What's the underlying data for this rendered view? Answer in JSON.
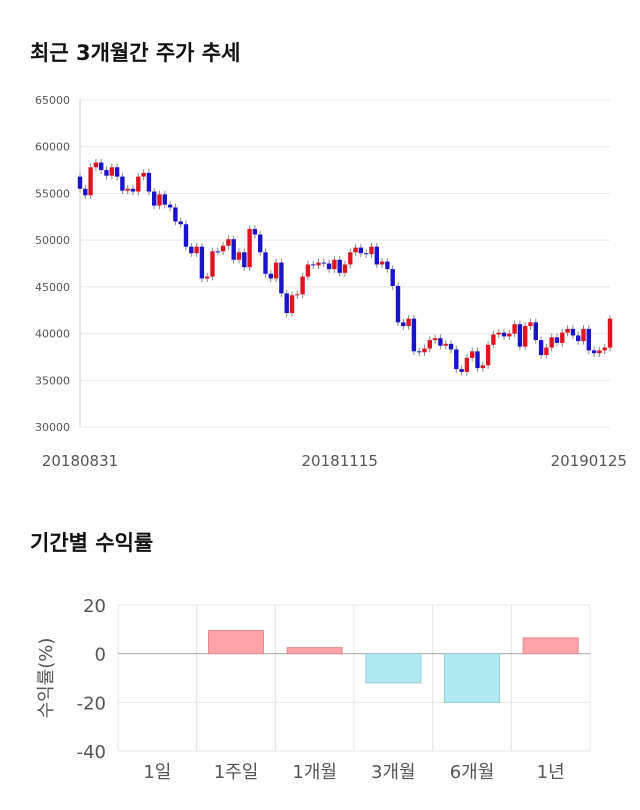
{
  "chart_data": [
    {
      "type": "candlestick",
      "title": "최근 3개월간 주가 추세",
      "categories": [
        "20180831",
        null,
        null,
        null,
        null,
        null,
        null,
        null,
        null,
        null,
        null,
        null,
        null,
        null,
        null,
        null,
        null,
        null,
        null,
        null,
        null,
        null,
        null,
        null,
        null,
        null,
        null,
        null,
        null,
        null,
        null,
        null,
        null,
        null,
        null,
        null,
        null,
        null,
        null,
        null,
        null,
        null,
        null,
        null,
        null,
        null,
        null,
        null,
        null,
        "20181115",
        null,
        null,
        null,
        null,
        null,
        null,
        null,
        null,
        null,
        null,
        null,
        null,
        null,
        null,
        null,
        null,
        null,
        null,
        null,
        null,
        null,
        null,
        null,
        null,
        null,
        null,
        null,
        null,
        null,
        null,
        null,
        null,
        null,
        null,
        null,
        null,
        null,
        null,
        null,
        null,
        null,
        null,
        null,
        null,
        null,
        null,
        "20190125",
        null,
        null,
        null,
        null
      ],
      "open": [
        56800,
        55500,
        54800,
        57800,
        58300,
        57500,
        56900,
        57800,
        56800,
        55300,
        55500,
        55200,
        56800,
        57200,
        55200,
        53700,
        54900,
        53800,
        53500,
        52000,
        51700,
        49300,
        48600,
        49300,
        45900,
        46100,
        48800,
        48800,
        49400,
        50100,
        47900,
        48700,
        47100,
        51200,
        50600,
        48700,
        46400,
        45900,
        47600,
        44300,
        42200,
        44100,
        44200,
        46100,
        47400,
        47300,
        47600,
        47500,
        46900,
        47900,
        46500,
        47400,
        48700,
        49200,
        48600,
        48500,
        49300,
        47400,
        47700,
        46900,
        45100,
        41200,
        40800,
        41600,
        38100,
        38000,
        38400,
        39300,
        39500,
        38700,
        38900,
        38300,
        36200,
        35900,
        37400,
        38100,
        36300,
        36600,
        38800,
        39900,
        40100,
        39700,
        40000,
        41000,
        38600,
        40800,
        41200,
        39300,
        37700,
        38500,
        39600,
        39000,
        40100,
        40500,
        39800,
        39200,
        40500,
        38200,
        37900,
        38200,
        38500
      ],
      "high": [
        57200,
        55900,
        58200,
        58700,
        58700,
        57900,
        58200,
        58200,
        57200,
        55900,
        55900,
        57200,
        57600,
        57600,
        55600,
        55300,
        55300,
        54200,
        53900,
        52400,
        52100,
        49700,
        49700,
        49700,
        46500,
        49200,
        49200,
        49800,
        50500,
        50500,
        49100,
        49100,
        51600,
        51600,
        51000,
        49100,
        46800,
        48000,
        48000,
        44700,
        44500,
        44600,
        46500,
        47800,
        47800,
        48000,
        48000,
        47900,
        48300,
        48300,
        47800,
        49100,
        49600,
        49600,
        49000,
        49700,
        49700,
        48100,
        48100,
        47300,
        45500,
        41600,
        42000,
        42000,
        38500,
        38800,
        39700,
        39900,
        39900,
        39300,
        39300,
        38700,
        36600,
        37800,
        38500,
        38500,
        37000,
        39200,
        40300,
        40500,
        40500,
        40400,
        41400,
        41400,
        41200,
        41600,
        41600,
        39700,
        38900,
        40000,
        40000,
        40500,
        40900,
        40900,
        40200,
        40900,
        40900,
        38600,
        38600,
        38900,
        42000
      ],
      "low": [
        55100,
        54400,
        54400,
        57400,
        57100,
        56500,
        56500,
        56400,
        54900,
        54900,
        54800,
        54800,
        56400,
        54800,
        53300,
        53300,
        53400,
        53100,
        51600,
        51300,
        48900,
        48200,
        48200,
        45500,
        45500,
        45700,
        48400,
        48400,
        49000,
        47500,
        47500,
        46700,
        46700,
        50200,
        48300,
        46000,
        45500,
        45500,
        43900,
        41800,
        41800,
        43700,
        43800,
        45700,
        46900,
        46900,
        47100,
        46500,
        46500,
        46100,
        46100,
        47000,
        48300,
        48200,
        48100,
        48100,
        47000,
        47000,
        46500,
        44700,
        40800,
        40400,
        40400,
        37700,
        37600,
        37600,
        38000,
        38900,
        38300,
        38300,
        37900,
        35800,
        35500,
        35500,
        37000,
        35900,
        35900,
        36200,
        38400,
        39500,
        39300,
        39300,
        39600,
        38200,
        38200,
        40400,
        38900,
        37300,
        37300,
        38100,
        38600,
        38600,
        39700,
        39400,
        38800,
        38800,
        37800,
        37500,
        37500,
        37800,
        38100
      ],
      "close": [
        55500,
        54800,
        57800,
        58300,
        57500,
        56900,
        57800,
        56800,
        55300,
        55500,
        55200,
        56800,
        57200,
        55200,
        53700,
        54900,
        53800,
        53500,
        52000,
        51700,
        49300,
        48600,
        49300,
        45900,
        46100,
        48800,
        48800,
        49400,
        50100,
        47900,
        48700,
        47100,
        51200,
        50600,
        48700,
        46400,
        45900,
        47600,
        44300,
        42200,
        44100,
        44200,
        46100,
        47400,
        47300,
        47600,
        47500,
        46900,
        47900,
        46500,
        47400,
        48700,
        49200,
        48600,
        48500,
        49300,
        47400,
        47700,
        46900,
        45100,
        41200,
        40800,
        41600,
        38100,
        38000,
        38400,
        39300,
        39500,
        38700,
        38900,
        38300,
        36200,
        35900,
        37400,
        38100,
        36300,
        36600,
        38800,
        39900,
        40100,
        39700,
        40000,
        41000,
        38600,
        40800,
        41200,
        39300,
        37700,
        38500,
        39600,
        39000,
        40100,
        40500,
        39800,
        39200,
        40500,
        38200,
        37900,
        38200,
        38500,
        41600
      ],
      "up_color": "#e0141e",
      "down_color": "#1a14c8",
      "ylim": [
        30000,
        65000
      ],
      "yticks": [
        30000,
        35000,
        40000,
        45000,
        50000,
        55000,
        60000,
        65000
      ],
      "grid": true
    },
    {
      "type": "bar",
      "title": "기간별 수익률",
      "y_label": "수익률(%)",
      "categories": [
        "1일",
        "1주일",
        "1개월",
        "3개월",
        "6개월",
        "1년"
      ],
      "values": [
        0,
        9.5,
        2.5,
        -12,
        -20,
        6.5
      ],
      "positive_color": "#ffa4a8",
      "negative_color": "#b1e9f2",
      "ylim": [
        -40,
        20
      ],
      "yticks": [
        -40,
        -20,
        0,
        20
      ],
      "grid": true
    }
  ]
}
